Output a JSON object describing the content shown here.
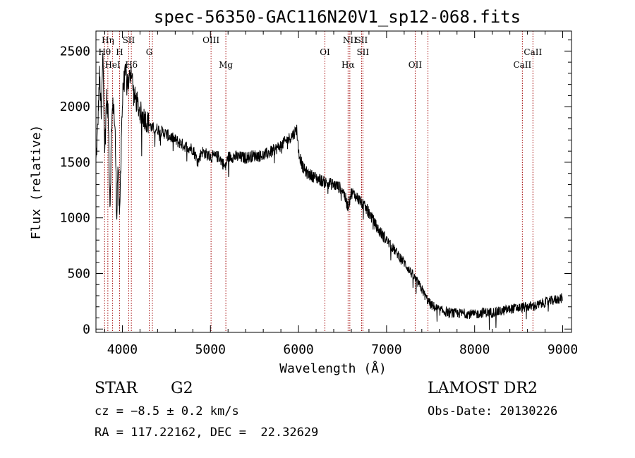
{
  "chart_data": {
    "type": "line",
    "title": "spec-56350-GAC116N20V1_sp12-068.fits",
    "xlabel": "Wavelength (Å)",
    "ylabel": "Flux (relative)",
    "xlim": [
      3700,
      9100
    ],
    "ylim": [
      -30,
      2680
    ],
    "x_ticks": [
      4000,
      5000,
      6000,
      7000,
      8000,
      9000
    ],
    "y_ticks": [
      0,
      500,
      1000,
      1500,
      2000,
      2500
    ],
    "grid": false,
    "line_color": "#000000",
    "line_marker_color": "#a00000",
    "spectrum_anchor_points": [
      [
        3700,
        1500
      ],
      [
        3720,
        1800
      ],
      [
        3740,
        2300
      ],
      [
        3760,
        1900
      ],
      [
        3780,
        2500
      ],
      [
        3800,
        1600
      ],
      [
        3820,
        2100
      ],
      [
        3840,
        1900
      ],
      [
        3860,
        1100
      ],
      [
        3880,
        1900
      ],
      [
        3900,
        2050
      ],
      [
        3920,
        1700
      ],
      [
        3935,
        1000
      ],
      [
        3950,
        1500
      ],
      [
        3968,
        950
      ],
      [
        3990,
        1800
      ],
      [
        4010,
        2200
      ],
      [
        4040,
        2300
      ],
      [
        4070,
        2200
      ],
      [
        4100,
        2350
      ],
      [
        4130,
        2100
      ],
      [
        4160,
        2050
      ],
      [
        4200,
        1950
      ],
      [
        4250,
        1900
      ],
      [
        4300,
        1850
      ],
      [
        4340,
        1800
      ],
      [
        4400,
        1800
      ],
      [
        4500,
        1750
      ],
      [
        4600,
        1700
      ],
      [
        4700,
        1650
      ],
      [
        4800,
        1620
      ],
      [
        4860,
        1500
      ],
      [
        4900,
        1600
      ],
      [
        5000,
        1550
      ],
      [
        5100,
        1550
      ],
      [
        5170,
        1450
      ],
      [
        5200,
        1550
      ],
      [
        5300,
        1550
      ],
      [
        5400,
        1540
      ],
      [
        5500,
        1560
      ],
      [
        5600,
        1560
      ],
      [
        5700,
        1600
      ],
      [
        5800,
        1650
      ],
      [
        5900,
        1720
      ],
      [
        5950,
        1760
      ],
      [
        5980,
        1800
      ],
      [
        6000,
        1600
      ],
      [
        6050,
        1450
      ],
      [
        6100,
        1400
      ],
      [
        6200,
        1360
      ],
      [
        6300,
        1320
      ],
      [
        6400,
        1300
      ],
      [
        6500,
        1260
      ],
      [
        6563,
        1100
      ],
      [
        6600,
        1230
      ],
      [
        6650,
        1200
      ],
      [
        6700,
        1150
      ],
      [
        6800,
        1050
      ],
      [
        6900,
        900
      ],
      [
        7000,
        800
      ],
      [
        7100,
        700
      ],
      [
        7200,
        600
      ],
      [
        7300,
        480
      ],
      [
        7400,
        360
      ],
      [
        7450,
        280
      ],
      [
        7500,
        220
      ],
      [
        7600,
        170
      ],
      [
        7700,
        150
      ],
      [
        7800,
        140
      ],
      [
        7900,
        140
      ],
      [
        8000,
        130
      ],
      [
        8100,
        150
      ],
      [
        8200,
        150
      ],
      [
        8300,
        160
      ],
      [
        8400,
        180
      ],
      [
        8500,
        190
      ],
      [
        8600,
        200
      ],
      [
        8700,
        210
      ],
      [
        8800,
        240
      ],
      [
        8900,
        260
      ],
      [
        9000,
        280
      ]
    ],
    "line_markers": [
      {
        "label": "Hη",
        "wavelength": 3835,
        "row": 0
      },
      {
        "label": "Hθ",
        "wavelength": 3798,
        "row": 1
      },
      {
        "label": "HeI",
        "wavelength": 3889,
        "row": 2
      },
      {
        "label": "SII",
        "wavelength": 4072,
        "row": 0
      },
      {
        "label": "H",
        "wavelength": 3968,
        "row": 1
      },
      {
        "label": "Hδ",
        "wavelength": 4102,
        "row": 2
      },
      {
        "label": "G",
        "wavelength": 4305,
        "row": 1
      },
      {
        "label": "OIII",
        "wavelength": 5007,
        "row": 0
      },
      {
        "label": "Mg",
        "wavelength": 5175,
        "row": 2
      },
      {
        "label": "OI",
        "wavelength": 6300,
        "row": 1
      },
      {
        "label": "NII",
        "wavelength": 6583,
        "row": 0
      },
      {
        "label": "Hα",
        "wavelength": 6563,
        "row": 2
      },
      {
        "label": "SII",
        "wavelength": 6716,
        "row": 0
      },
      {
        "label": "SII",
        "wavelength": 6731,
        "row": 1
      },
      {
        "label": "OII",
        "wavelength": 7325,
        "row": 2
      },
      {
        "label": "CaII",
        "wavelength": 8662,
        "row": 1
      },
      {
        "label": "CaII",
        "wavelength": 8542,
        "row": 2
      },
      {
        "label": "",
        "wavelength": 4341,
        "row": -1
      },
      {
        "label": "",
        "wavelength": 7470,
        "row": -1
      }
    ]
  },
  "footer": {
    "object_class": "STAR",
    "subclass": "G2",
    "cz": "cz = −8.5 ± 0.2 km/s",
    "coords": "RA = 117.22162, DEC =  22.32629",
    "survey": "LAMOST DR2",
    "obs_date": "Obs-Date: 20130226"
  }
}
